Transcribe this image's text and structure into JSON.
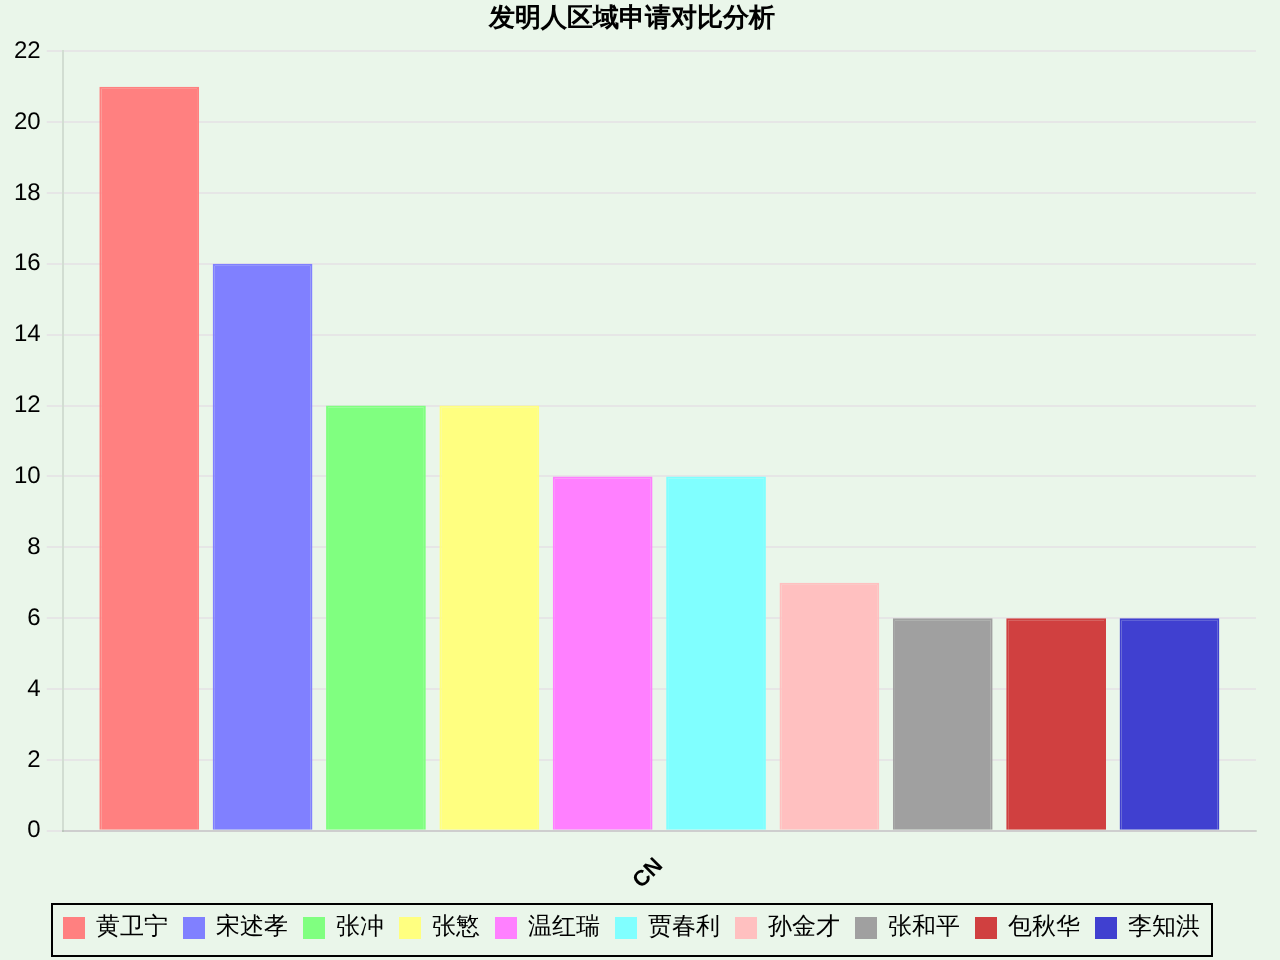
{
  "chart_data": {
    "type": "bar",
    "title": "发明人区域申请对比分析",
    "categories": [
      "CN"
    ],
    "series": [
      {
        "name": "黄卫宁",
        "color": "#ff8080",
        "values": [
          21
        ]
      },
      {
        "name": "宋述孝",
        "color": "#8080ff",
        "values": [
          16
        ]
      },
      {
        "name": "张冲",
        "color": "#80ff80",
        "values": [
          12
        ]
      },
      {
        "name": "张慜",
        "color": "#ffff80",
        "values": [
          12
        ]
      },
      {
        "name": "温红瑞",
        "color": "#ff80ff",
        "values": [
          10
        ]
      },
      {
        "name": "贾春利",
        "color": "#80ffff",
        "values": [
          10
        ]
      },
      {
        "name": "孙金才",
        "color": "#ffc0c0",
        "values": [
          7
        ]
      },
      {
        "name": "张和平",
        "color": "#a0a0a0",
        "values": [
          6
        ]
      },
      {
        "name": "包秋华",
        "color": "#d04040",
        "values": [
          6
        ]
      },
      {
        "name": "李知洪",
        "color": "#4040d0",
        "values": [
          6
        ]
      }
    ],
    "ylim": [
      0,
      22
    ],
    "yticks": [
      0,
      2,
      4,
      6,
      8,
      10,
      12,
      14,
      16,
      18,
      20,
      22
    ],
    "grid": "y",
    "legend": "bottom"
  }
}
